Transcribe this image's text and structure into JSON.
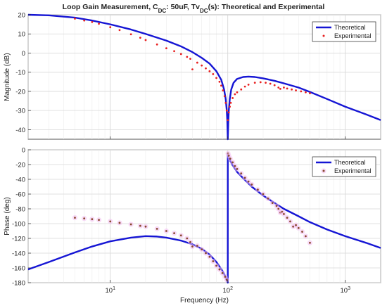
{
  "chart_data": [
    {
      "type": "line",
      "title": "Loop Gain Measurement, C",
      "title_parts": {
        "prefix": "Loop Gain Measurement, C",
        "sub1": "DC",
        "mid": ": 50uF, Tv",
        "sub2": "DC",
        "suffix": "(s): Theoretical and Experimental"
      },
      "xlabel": "",
      "ylabel": "Magnitude (dB)",
      "xscale": "log",
      "xlim": [
        2,
        2000
      ],
      "ylim": [
        -45,
        20
      ],
      "yticks": [
        20,
        10,
        0,
        -10,
        -20,
        -30,
        -40
      ],
      "ytick_labels": [
        "20",
        "10",
        "0",
        "-10",
        "-20",
        "-30",
        "-40"
      ],
      "grid": true,
      "legend": "top-right",
      "series": [
        {
          "name": "Theoretical",
          "style": "line",
          "color": "#1515d4",
          "x": [
            2,
            3,
            5,
            7,
            10,
            15,
            20,
            30,
            40,
            50,
            60,
            70,
            80,
            88,
            93,
            96,
            98,
            99,
            100,
            101,
            102,
            104,
            107,
            112,
            120,
            135,
            150,
            170,
            200,
            250,
            300,
            400,
            500,
            700,
            1000,
            1500,
            2000
          ],
          "y": [
            20,
            19.7,
            18.5,
            17,
            15,
            12.3,
            10,
            6.5,
            3.5,
            0.5,
            -2.5,
            -5.5,
            -9.5,
            -14,
            -19,
            -24,
            -30,
            -35,
            -45,
            -36,
            -30,
            -24,
            -19,
            -15.5,
            -13.5,
            -12.5,
            -12.3,
            -12.5,
            -13.2,
            -14.5,
            -15.8,
            -18,
            -20.3,
            -24,
            -28,
            -32,
            -35
          ]
        },
        {
          "name": "Experimental",
          "style": "markers",
          "color": "#e82020",
          "x": [
            5,
            6,
            7,
            8,
            10,
            12,
            15,
            18,
            20,
            25,
            30,
            35,
            40,
            45,
            48,
            50,
            55,
            60,
            65,
            70,
            75,
            80,
            85,
            88,
            91,
            94,
            96,
            98,
            100,
            102,
            104,
            106,
            110,
            115,
            120,
            130,
            140,
            150,
            170,
            190,
            210,
            230,
            250,
            270,
            280,
            300,
            320,
            350,
            380,
            420,
            460,
            500
          ],
          "y": [
            18,
            17,
            16.2,
            15.3,
            13.5,
            12,
            9.8,
            8,
            6.8,
            4.5,
            2.5,
            1,
            -0.5,
            -2,
            -3,
            -8.5,
            -5,
            -6.5,
            -8,
            -9.5,
            -11,
            -13,
            -15,
            -17,
            -19.5,
            -22.5,
            -26,
            -30,
            -35,
            -31,
            -28,
            -26,
            -23.5,
            -21.5,
            -20.5,
            -19,
            -17.5,
            -16.5,
            -15.5,
            -15.2,
            -15.5,
            -16,
            -16.8,
            -18,
            -18.7,
            -18,
            -18.5,
            -19,
            -19.5,
            -20,
            -20.5,
            -21
          ]
        }
      ]
    },
    {
      "type": "line",
      "title": "",
      "xlabel": "Frequency (Hz)",
      "ylabel": "Phase (deg)",
      "xscale": "log",
      "xlim": [
        2,
        2000
      ],
      "ylim": [
        -180,
        0
      ],
      "yticks": [
        0,
        -20,
        -40,
        -60,
        -80,
        -100,
        -120,
        -140,
        -160,
        -180
      ],
      "ytick_labels": [
        "0",
        "-20",
        "-40",
        "-60",
        "-80",
        "-100",
        "-120",
        "-140",
        "-160",
        "-180"
      ],
      "xticks": [
        10,
        100,
        1000
      ],
      "xtick_labels": [
        {
          "base": "10",
          "exp": "1"
        },
        {
          "base": "10",
          "exp": "2"
        },
        {
          "base": "10",
          "exp": "3"
        }
      ],
      "grid": true,
      "legend": "top-right",
      "series": [
        {
          "name": "Theoretical",
          "style": "line",
          "color": "#1515d4",
          "x": [
            2,
            3,
            5,
            7,
            10,
            15,
            20,
            25,
            30,
            40,
            50,
            60,
            70,
            80,
            90,
            95,
            98,
            100,
            100.05,
            102,
            105,
            110,
            120,
            140,
            160,
            200,
            250,
            300,
            400,
            500,
            700,
            1000,
            1500,
            2000
          ],
          "y": [
            -162,
            -152,
            -139,
            -131,
            -124,
            -119,
            -117,
            -117.5,
            -119,
            -123,
            -128,
            -134,
            -142,
            -152,
            -164,
            -171,
            -177,
            -180,
            -5,
            -10,
            -15,
            -21,
            -30,
            -41,
            -50,
            -62,
            -72,
            -80,
            -90,
            -98,
            -108,
            -117,
            -126,
            -133
          ]
        },
        {
          "name": "Experimental",
          "style": "markers",
          "color": "#8a4a2e",
          "x": [
            5,
            6,
            7,
            8,
            10,
            12,
            15,
            18,
            20,
            25,
            30,
            35,
            40,
            45,
            48,
            50,
            55,
            60,
            65,
            70,
            75,
            80,
            85,
            90,
            95,
            98,
            100.5,
            102,
            105,
            110,
            115,
            120,
            130,
            140,
            150,
            160,
            180,
            200,
            220,
            240,
            260,
            270,
            280,
            290,
            300,
            320,
            340,
            360,
            380,
            400,
            430,
            460,
            500
          ],
          "y": [
            -92,
            -93,
            -94,
            -95,
            -97,
            -99,
            -101,
            -103,
            -104,
            -107,
            -110,
            -113,
            -116,
            -120,
            -125,
            -131,
            -130,
            -135,
            -140,
            -145,
            -151,
            -157,
            -162,
            -167,
            -172,
            -176,
            -5,
            -8,
            -12,
            -17,
            -22,
            -26,
            -32,
            -38,
            -43,
            -47,
            -54,
            -60,
            -66,
            -72,
            -76,
            -80,
            -85,
            -84,
            -87,
            -92,
            -97,
            -104,
            -102,
            -106,
            -111,
            -117,
            -126
          ]
        }
      ]
    }
  ]
}
